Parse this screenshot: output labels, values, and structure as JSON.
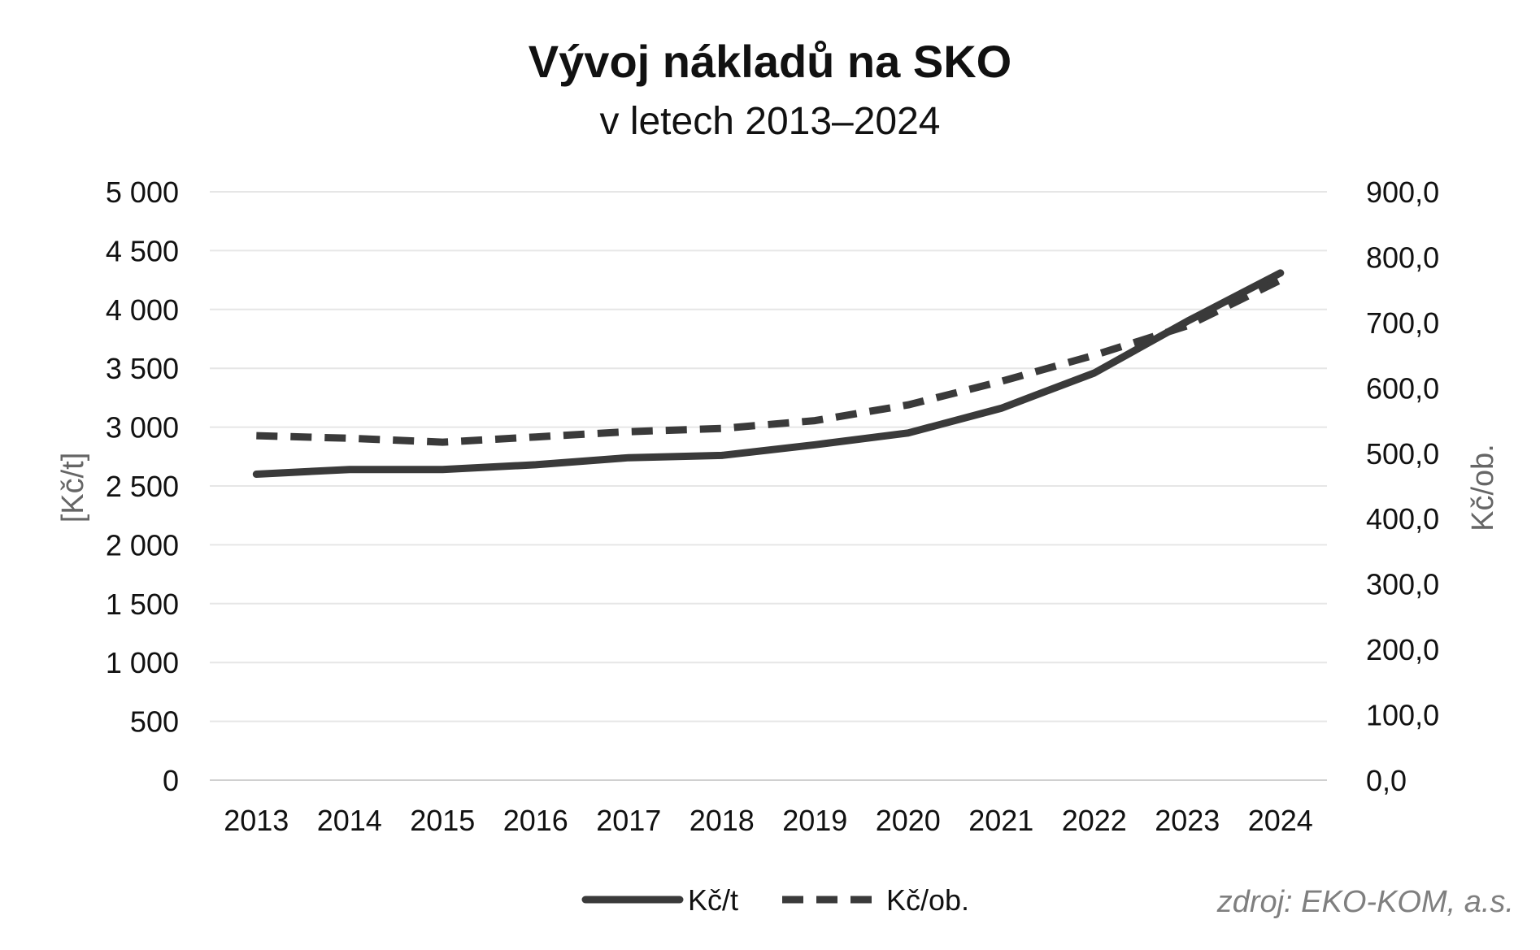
{
  "chart_data": {
    "type": "line",
    "title": "Vývoj nákladů na SKO",
    "subtitle": "v letech 2013–2024",
    "categories": [
      "2013",
      "2014",
      "2015",
      "2016",
      "2017",
      "2018",
      "2019",
      "2020",
      "2021",
      "2022",
      "2023",
      "2024"
    ],
    "ylabel": "[Kč/t]",
    "y2label": "Kč/ob.",
    "ylim": [
      0,
      5000
    ],
    "y2lim": [
      0,
      900
    ],
    "yticks": [
      "0",
      "500",
      "1 000",
      "1 500",
      "2 000",
      "2 500",
      "3 000",
      "3 500",
      "4 000",
      "4 500",
      "5 000"
    ],
    "y2ticks": [
      "0,0",
      "100,0",
      "200,0",
      "300,0",
      "400,0",
      "500,0",
      "600,0",
      "700,0",
      "800,0",
      "900,0"
    ],
    "grid": true,
    "legend_position": "bottom",
    "series": [
      {
        "name": "Kč/t",
        "axis": "left",
        "style": "solid",
        "color": "#3a3a3a",
        "values": [
          2600,
          2640,
          2640,
          2680,
          2740,
          2760,
          2850,
          2950,
          3160,
          3460,
          3900,
          4310
        ]
      },
      {
        "name": "Kč/ob.",
        "axis": "right",
        "style": "dashed",
        "color": "#3a3a3a",
        "values": [
          527,
          523,
          517,
          525,
          533,
          538,
          550,
          574,
          610,
          650,
          695,
          765
        ]
      }
    ],
    "source": "zdroj: EKO-KOM, a.s."
  },
  "colors": {
    "gridline": "#e6e6e6",
    "axis": "#d0d0d0",
    "series": "#3a3a3a"
  }
}
